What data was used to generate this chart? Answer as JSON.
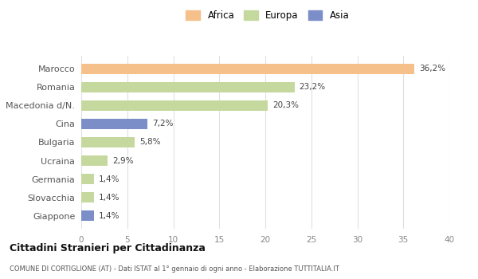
{
  "categories": [
    "Marocco",
    "Romania",
    "Macedonia d/N.",
    "Cina",
    "Bulgaria",
    "Ucraina",
    "Germania",
    "Slovacchia",
    "Giappone"
  ],
  "values": [
    36.2,
    23.2,
    20.3,
    7.2,
    5.8,
    2.9,
    1.4,
    1.4,
    1.4
  ],
  "colors": [
    "#f5c08a",
    "#c5d89d",
    "#c5d89d",
    "#7b8ec8",
    "#c5d89d",
    "#c5d89d",
    "#c5d89d",
    "#c5d89d",
    "#7b8ec8"
  ],
  "labels": [
    "36,2%",
    "23,2%",
    "20,3%",
    "7,2%",
    "5,8%",
    "2,9%",
    "1,4%",
    "1,4%",
    "1,4%"
  ],
  "legend_labels": [
    "Africa",
    "Europa",
    "Asia"
  ],
  "legend_colors": [
    "#f5c08a",
    "#c5d89d",
    "#7b8ec8"
  ],
  "title": "Cittadini Stranieri per Cittadinanza",
  "subtitle": "COMUNE DI CORTIGLIONE (AT) - Dati ISTAT al 1° gennaio di ogni anno - Elaborazione TUTTITALIA.IT",
  "xlim": [
    0,
    40
  ],
  "xticks": [
    0,
    5,
    10,
    15,
    20,
    25,
    30,
    35,
    40
  ],
  "background_color": "#ffffff",
  "bar_height": 0.55,
  "grid_color": "#e0e0e0"
}
